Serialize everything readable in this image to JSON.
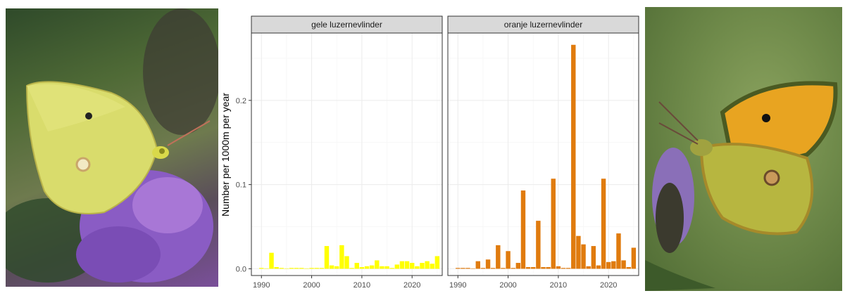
{
  "images": {
    "left_photo": "butterfly-yellow-on-purple-flower",
    "right_photo": "butterfly-orange-on-thistle"
  },
  "chart_data": {
    "type": "bar",
    "title": "",
    "xlabel": "",
    "ylabel": "Number per 1000m per year",
    "xlim": [
      1988,
      2026
    ],
    "ylim": [
      -0.008,
      0.28
    ],
    "x_ticks": [
      1990,
      2000,
      2010,
      2020
    ],
    "y_ticks": [
      0.0,
      0.1,
      0.2
    ],
    "y_tick_labels": [
      "0.0",
      "0.1",
      "0.2"
    ],
    "grid": true,
    "facets": [
      {
        "name": "gele luzernevlinder",
        "color": "#ffff00",
        "x": [
          1990,
          1991,
          1992,
          1993,
          1994,
          1995,
          1996,
          1997,
          1998,
          1999,
          2000,
          2001,
          2002,
          2003,
          2004,
          2005,
          2006,
          2007,
          2008,
          2009,
          2010,
          2011,
          2012,
          2013,
          2014,
          2015,
          2016,
          2017,
          2018,
          2019,
          2020,
          2021,
          2022,
          2023,
          2024,
          2025
        ],
        "values": [
          0.001,
          0.0005,
          0.019,
          0.002,
          0.001,
          0.0005,
          0.001,
          0.001,
          0.001,
          0.0005,
          0.001,
          0.001,
          0.001,
          0.027,
          0.004,
          0.003,
          0.028,
          0.015,
          0.001,
          0.007,
          0.002,
          0.003,
          0.004,
          0.01,
          0.003,
          0.003,
          0.001,
          0.005,
          0.009,
          0.009,
          0.007,
          0.003,
          0.007,
          0.009,
          0.006,
          0.015
        ]
      },
      {
        "name": "oranje luzernevlinder",
        "color": "#e07b0e",
        "x": [
          1990,
          1991,
          1992,
          1993,
          1994,
          1995,
          1996,
          1997,
          1998,
          1999,
          2000,
          2001,
          2002,
          2003,
          2004,
          2005,
          2006,
          2007,
          2008,
          2009,
          2010,
          2011,
          2012,
          2013,
          2014,
          2015,
          2016,
          2017,
          2018,
          2019,
          2020,
          2021,
          2022,
          2023,
          2024,
          2025
        ],
        "values": [
          0.001,
          0.001,
          0.001,
          0.0005,
          0.009,
          0.001,
          0.011,
          0.001,
          0.028,
          0.001,
          0.021,
          0.001,
          0.007,
          0.093,
          0.002,
          0.002,
          0.057,
          0.002,
          0.002,
          0.107,
          0.003,
          0.001,
          0.001,
          0.266,
          0.039,
          0.029,
          0.003,
          0.027,
          0.004,
          0.107,
          0.008,
          0.009,
          0.042,
          0.01,
          0.002,
          0.025
        ]
      }
    ]
  }
}
